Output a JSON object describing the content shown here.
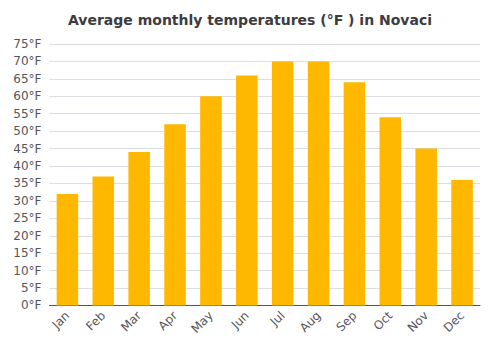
{
  "chart_data": {
    "type": "bar",
    "title": "Average monthly temperatures (°F ) in Novaci",
    "categories": [
      "Jan",
      "Feb",
      "Mar",
      "Apr",
      "May",
      "Jun",
      "Jul",
      "Aug",
      "Sep",
      "Oct",
      "Nov",
      "Dec"
    ],
    "values": [
      32,
      37,
      44,
      52,
      60,
      66,
      70,
      70,
      64,
      54,
      45,
      36
    ],
    "color": "#FFB800",
    "ylim": [
      0,
      75
    ],
    "yticks": [
      {
        "value": 0,
        "label": "0°F"
      },
      {
        "value": 5,
        "label": "5°F"
      },
      {
        "value": 10,
        "label": "10°F"
      },
      {
        "value": 15,
        "label": "15°F"
      },
      {
        "value": 20,
        "label": "20°F"
      },
      {
        "value": 25,
        "label": "25°F"
      },
      {
        "value": 30,
        "label": "30°F"
      },
      {
        "value": 35,
        "label": "35°F"
      },
      {
        "value": 40,
        "label": "40°F"
      },
      {
        "value": 45,
        "label": "45°F"
      },
      {
        "value": 50,
        "label": "50°F"
      },
      {
        "value": 55,
        "label": "55°F"
      },
      {
        "value": 60,
        "label": "60°F"
      },
      {
        "value": 65,
        "label": "65°F"
      },
      {
        "value": 70,
        "label": "70°F"
      },
      {
        "value": 75,
        "label": "75°F"
      }
    ],
    "grid": true
  }
}
